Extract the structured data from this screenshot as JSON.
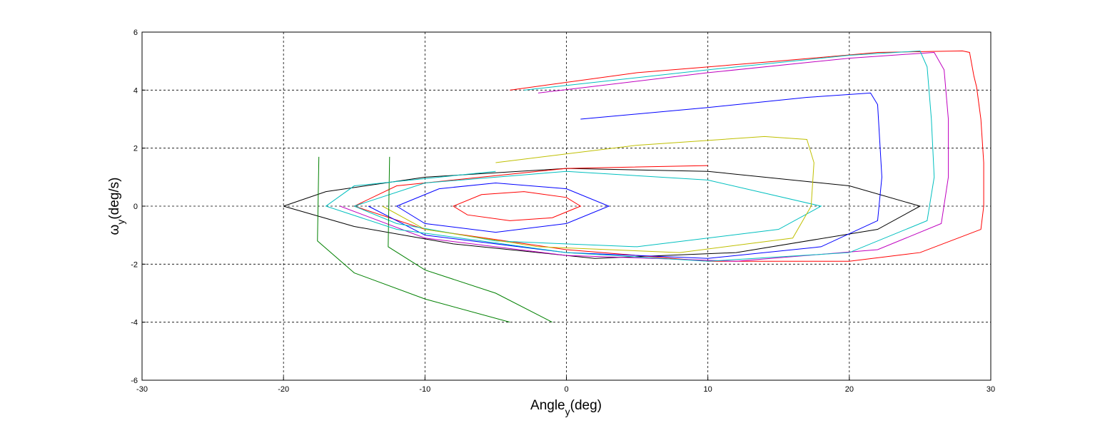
{
  "chart_data": {
    "type": "line",
    "xlabel": {
      "main": "Angle",
      "sub": "y",
      "tail": "(deg)"
    },
    "ylabel": {
      "main": "ω",
      "sub": "y",
      "tail": "(deg/s)"
    },
    "xlim": [
      -30,
      30
    ],
    "ylim": [
      -6,
      6
    ],
    "xticks": [
      -30,
      -20,
      -10,
      0,
      10,
      20,
      30
    ],
    "yticks": [
      -6,
      -4,
      -2,
      0,
      2,
      4,
      6
    ],
    "grid": true,
    "series": [
      {
        "color": "#000000",
        "x": [
          -20,
          -17,
          -10,
          0,
          10,
          20,
          25,
          22,
          12,
          2,
          -8,
          -15,
          -20
        ],
        "y": [
          0,
          0.5,
          1.0,
          1.3,
          1.2,
          0.7,
          0,
          -0.8,
          -1.6,
          -1.8,
          -1.3,
          -0.7,
          0
        ]
      },
      {
        "color": "#ff0000",
        "x": [
          -4,
          5,
          15,
          22,
          28,
          28.5,
          28.8,
          29,
          29.3,
          29.5,
          29.5,
          29.3,
          25,
          20,
          10,
          0,
          -10,
          -15,
          -12,
          0,
          10
        ],
        "y": [
          4,
          4.6,
          5.0,
          5.3,
          5.35,
          5.3,
          4.5,
          4.1,
          3,
          1.5,
          0,
          -0.8,
          -1.6,
          -1.9,
          -1.9,
          -1.5,
          -0.8,
          0,
          0.7,
          1.3,
          1.4
        ]
      },
      {
        "color": "#0000ff",
        "x": [
          1,
          10,
          17,
          21.5,
          22,
          22.3,
          22,
          18,
          10,
          0,
          -10,
          -14
        ],
        "y": [
          3,
          3.4,
          3.75,
          3.9,
          3.5,
          1,
          -0.5,
          -1.4,
          -1.8,
          -1.6,
          -1,
          0
        ]
      },
      {
        "color": "#008000",
        "x": [
          -17.5,
          -17.6,
          -15,
          -10,
          -4
        ],
        "y": [
          1.7,
          -1.2,
          -2.3,
          -3.2,
          -4
        ]
      },
      {
        "color": "#00bfbf",
        "x": [
          -15,
          -10,
          0,
          10,
          18,
          15,
          5,
          -5,
          -12,
          -15
        ],
        "y": [
          0,
          0.8,
          1.2,
          0.9,
          0,
          -0.8,
          -1.4,
          -1.2,
          -0.6,
          0
        ]
      },
      {
        "color": "#bf00bf",
        "x": [
          -2,
          10,
          20,
          26,
          26.7,
          27,
          27,
          26.5,
          22,
          12,
          0,
          -10,
          -16
        ],
        "y": [
          3.9,
          4.6,
          5.1,
          5.3,
          4.7,
          3,
          1,
          -0.6,
          -1.5,
          -1.9,
          -1.7,
          -1.1,
          0
        ]
      },
      {
        "color": "#bfbf00",
        "x": [
          -5,
          5,
          14,
          17,
          17.5,
          17.3,
          16,
          8,
          -2,
          -10,
          -13
        ],
        "y": [
          1.5,
          2.1,
          2.4,
          2.3,
          1.5,
          0,
          -1.1,
          -1.6,
          -1.4,
          -0.8,
          0
        ]
      },
      {
        "color": "#0000ff",
        "x": [
          -12,
          -9,
          -5,
          0,
          3,
          0,
          -5,
          -10,
          -12
        ],
        "y": [
          0,
          0.6,
          0.8,
          0.6,
          0,
          -0.6,
          -0.9,
          -0.6,
          0
        ]
      },
      {
        "color": "#ff0000",
        "x": [
          -8,
          -6,
          -3,
          0,
          1,
          -1,
          -4,
          -7,
          -8
        ],
        "y": [
          0,
          0.4,
          0.5,
          0.3,
          0,
          -0.4,
          -0.5,
          -0.3,
          0
        ]
      },
      {
        "color": "#008000",
        "x": [
          -12.5,
          -12.6,
          -10,
          -5,
          -1
        ],
        "y": [
          1.7,
          -1.4,
          -2.2,
          -3,
          -4
        ]
      },
      {
        "color": "#00bfbf",
        "x": [
          -3,
          10,
          20,
          25,
          25.5,
          25.8,
          26,
          25.5,
          20,
          10,
          0,
          -12,
          -17,
          -15,
          -5
        ],
        "y": [
          4,
          4.7,
          5.2,
          5.35,
          4.8,
          3,
          1,
          -0.5,
          -1.6,
          -1.9,
          -1.6,
          -0.8,
          0,
          0.7,
          1.2
        ]
      }
    ]
  }
}
